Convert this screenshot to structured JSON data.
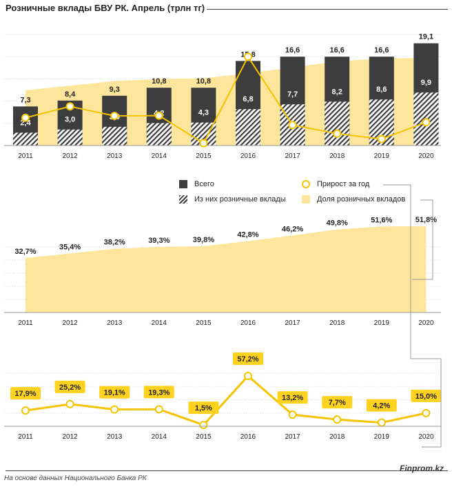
{
  "title": "Розничные вклады БВУ РК. Апрель (трлн тг)",
  "legend": {
    "total": "Всего",
    "retail": "Из них розничные вклады",
    "growth": "Прирост за год",
    "share": "Доля розничных вкладов"
  },
  "footer": "На основе данных Национального  Банка РК",
  "brand": "Finprom.kz",
  "colors": {
    "dark": "#3d3d3d",
    "yellow": "#f5c400",
    "light_yellow": "#fde59b",
    "label_box": "#ffd21f"
  },
  "chart_data": [
    {
      "type": "bar",
      "categories": [
        "2011",
        "2012",
        "2013",
        "2014",
        "2015",
        "2016",
        "2017",
        "2018",
        "2019",
        "2020"
      ],
      "series": [
        {
          "name": "Всего",
          "values": [
            7.3,
            8.4,
            9.3,
            10.8,
            10.8,
            15.8,
            16.6,
            16.6,
            16.6,
            19.1
          ]
        },
        {
          "name": "Из них розничные вклады",
          "values": [
            2.4,
            3.0,
            3.5,
            4.2,
            4.3,
            6.8,
            7.7,
            8.2,
            8.6,
            9.9
          ]
        }
      ],
      "labels_total": [
        "7,3",
        "8,4",
        "9,3",
        "10,8",
        "10,8",
        "15,8",
        "16,6",
        "16,6",
        "16,6",
        "19,1"
      ],
      "labels_retail": [
        "2,4",
        "3,0",
        "3,5",
        "4,2",
        "4,3",
        "6,8",
        "7,7",
        "8,2",
        "8,6",
        "9,9"
      ],
      "ylim": [
        0,
        21
      ]
    },
    {
      "type": "area",
      "categories": [
        "2011",
        "2012",
        "2013",
        "2014",
        "2015",
        "2016",
        "2017",
        "2018",
        "2019",
        "2020"
      ],
      "series": [
        {
          "name": "Доля розничных вкладов",
          "values": [
            32.7,
            35.4,
            38.2,
            39.3,
            39.8,
            42.8,
            46.2,
            49.8,
            51.6,
            51.8
          ]
        }
      ],
      "labels": [
        "32,7%",
        "35,4%",
        "38,2%",
        "39,3%",
        "39,8%",
        "42,8%",
        "46,2%",
        "49,8%",
        "51,6%",
        "51,8%"
      ],
      "ylim": [
        0,
        60
      ]
    },
    {
      "type": "line",
      "categories": [
        "2011",
        "2012",
        "2013",
        "2014",
        "2015",
        "2016",
        "2017",
        "2018",
        "2019",
        "2020"
      ],
      "series": [
        {
          "name": "Прирост за год",
          "values": [
            17.9,
            25.2,
            19.1,
            19.3,
            1.5,
            57.2,
            13.2,
            7.7,
            4.2,
            15.0
          ]
        }
      ],
      "labels": [
        "17,9%",
        "25,2%",
        "19,1%",
        "19,3%",
        "1,5%",
        "57,2%",
        "13,2%",
        "7,7%",
        "4,2%",
        "15,0%"
      ],
      "ylim": [
        0,
        65
      ]
    }
  ]
}
